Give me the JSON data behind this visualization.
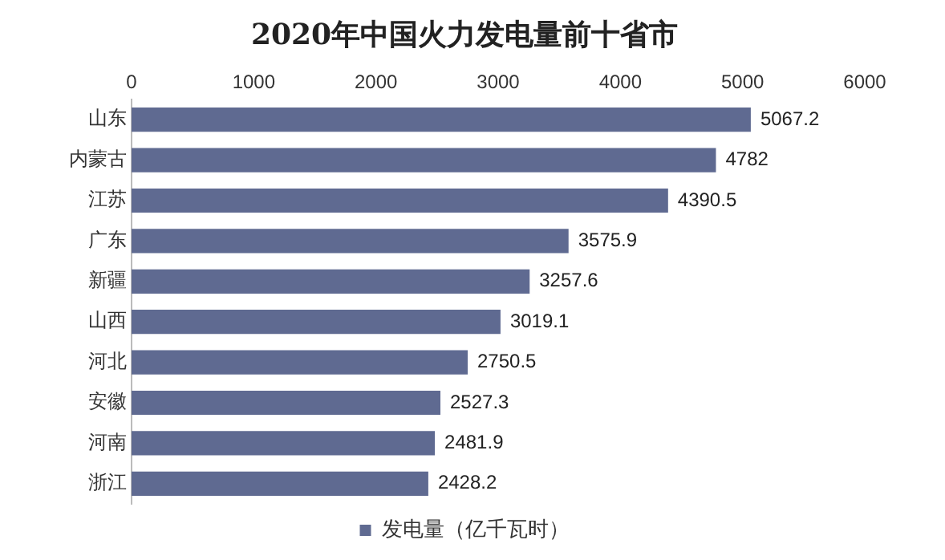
{
  "chart_data": {
    "type": "bar",
    "orientation": "horizontal",
    "title": "2020年中国火力发电量前十省市",
    "categories": [
      "山东",
      "内蒙古",
      "江苏",
      "广东",
      "新疆",
      "山西",
      "河北",
      "安徽",
      "河南",
      "浙江"
    ],
    "series": [
      {
        "name": "发电量（亿千瓦时）",
        "color": "#5f6a91",
        "values": [
          5067.2,
          4782,
          4390.5,
          3575.9,
          3257.6,
          3019.1,
          2750.5,
          2527.3,
          2481.9,
          2428.2
        ]
      }
    ],
    "xlim": [
      0,
      6000
    ],
    "xticks": [
      0,
      1000,
      2000,
      3000,
      4000,
      5000,
      6000
    ],
    "grid": false,
    "legend": "bottom",
    "data_labels": true
  }
}
